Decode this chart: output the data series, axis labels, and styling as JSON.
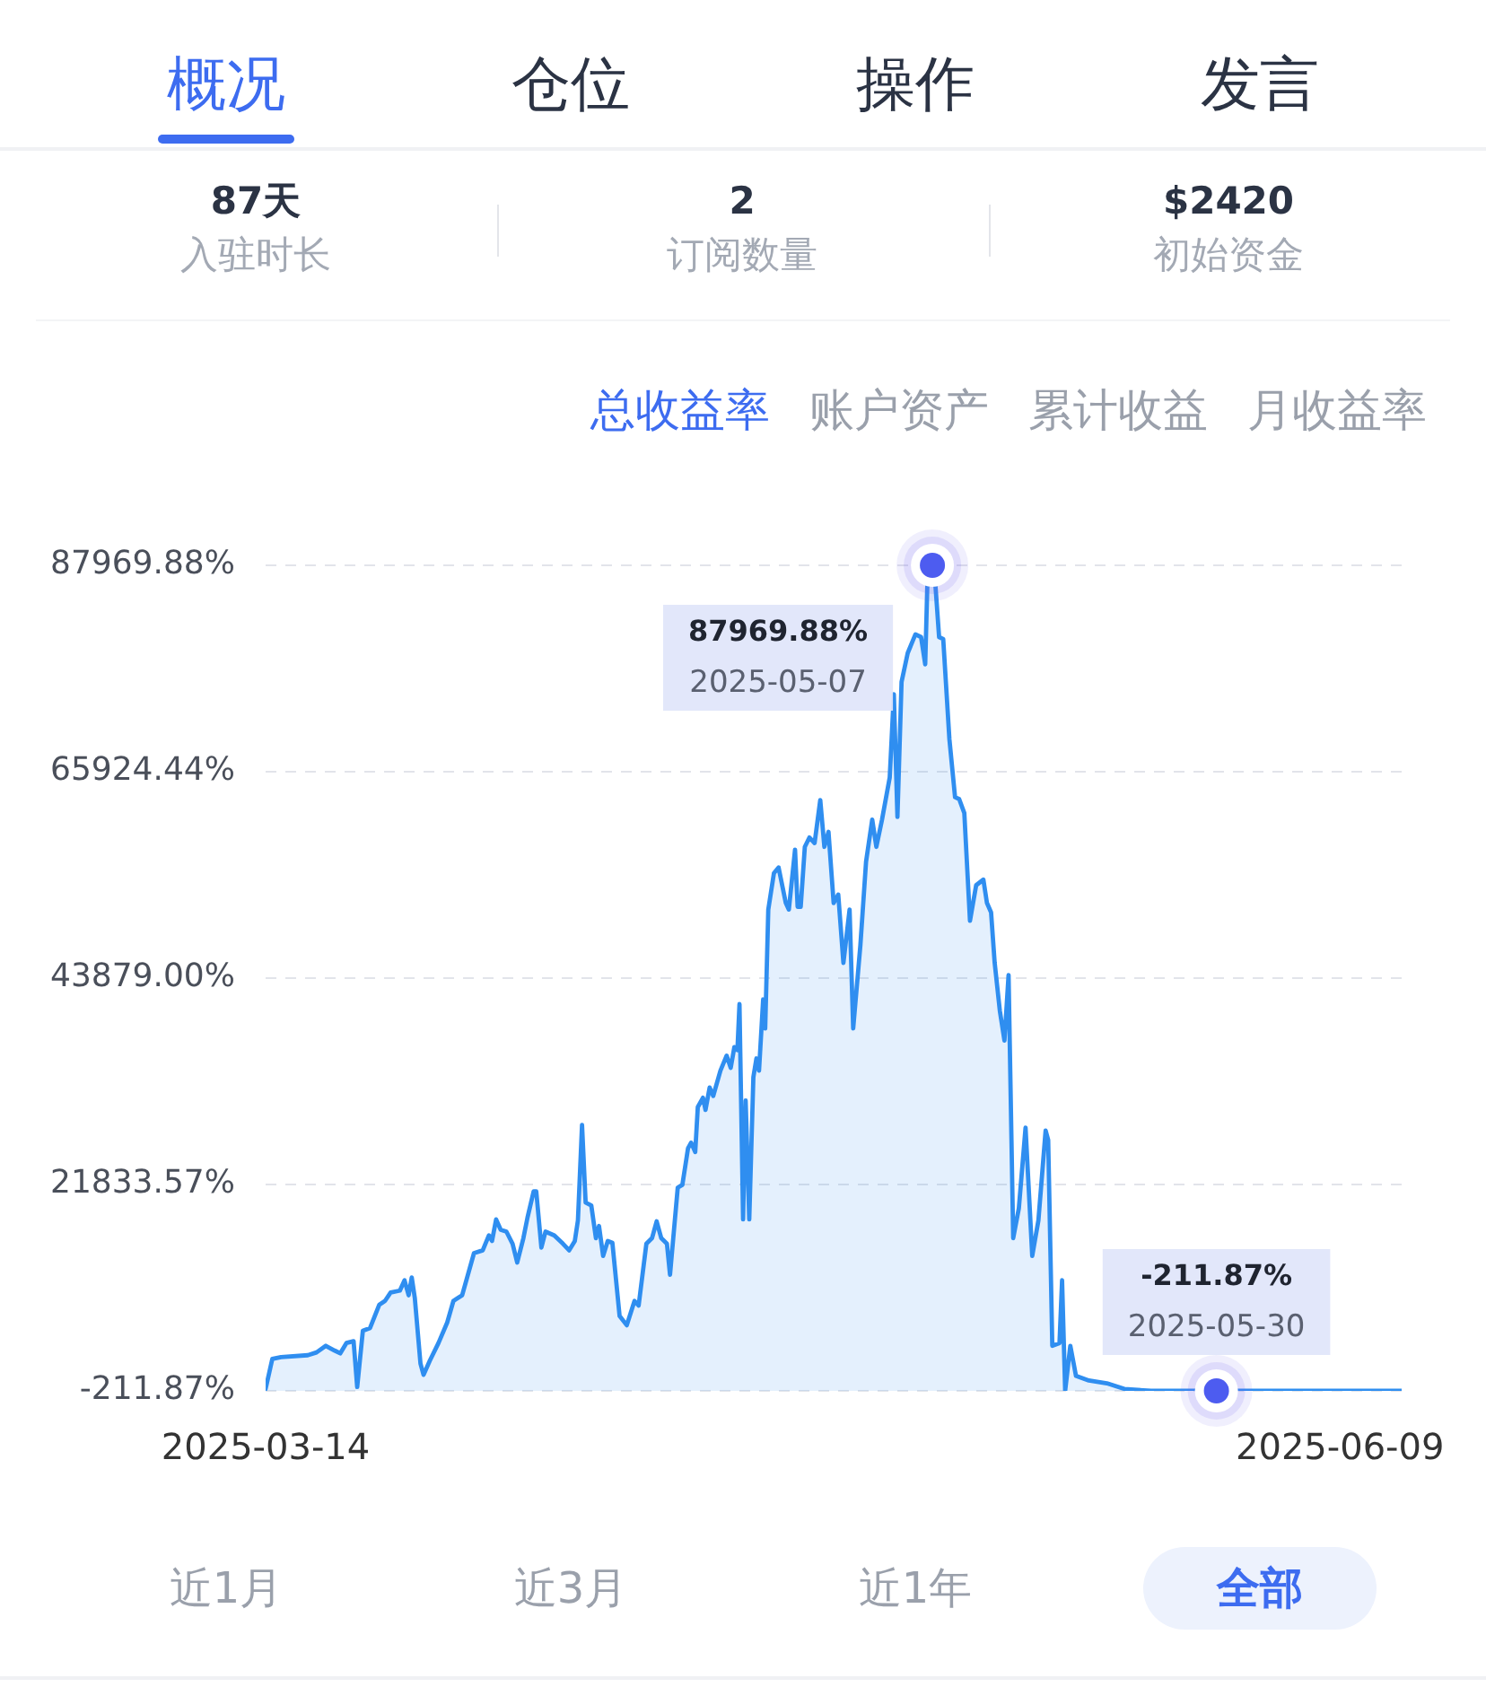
{
  "chart_data": {
    "type": "area",
    "x": [
      "2025-03-14T00:00",
      "2025-03-14T13:00",
      "2025-03-15T06:00",
      "2025-03-17T10:00",
      "2025-03-18T03:00",
      "2025-03-18T21:00",
      "2025-03-19T14:00",
      "2025-03-20T01:00",
      "2025-03-20T13:00",
      "2025-03-21T03:00",
      "2025-03-21T10:00",
      "2025-03-21T21:00",
      "2025-03-22T11:00",
      "2025-03-23T05:00",
      "2025-03-23T16:00",
      "2025-03-24T03:00",
      "2025-03-24T21:00",
      "2025-03-25T06:00",
      "2025-03-25T14:00",
      "2025-03-25T20:00",
      "2025-03-26T02:00",
      "2025-03-26T13:00",
      "2025-03-26T19:00",
      "2025-03-27T07:00",
      "2025-03-28T00:00",
      "2025-03-28T17:00",
      "2025-03-29T05:00",
      "2025-03-29T22:00",
      "2025-03-30T21:00",
      "2025-03-31T14:00",
      "2025-04-01T02:00",
      "2025-04-01T08:00",
      "2025-04-01T16:00",
      "2025-04-02T01:00",
      "2025-04-02T12:00",
      "2025-04-03T00:00",
      "2025-04-03T09:00",
      "2025-04-03T21:00",
      "2025-04-04T05:00",
      "2025-04-04T17:00",
      "2025-04-04T22:00",
      "2025-04-05T08:00",
      "2025-04-05T16:00",
      "2025-04-06T09:00",
      "2025-04-07T02:00",
      "2025-04-07T14:00",
      "2025-04-08T01:00",
      "2025-04-08T07:00",
      "2025-04-08T15:00",
      "2025-04-08T22:00",
      "2025-04-09T09:00",
      "2025-04-09T18:00",
      "2025-04-10T00:00",
      "2025-04-10T08:00",
      "2025-04-10T17:00",
      "2025-04-11T02:00",
      "2025-04-11T16:00",
      "2025-04-12T06:00",
      "2025-04-12T21:00",
      "2025-04-13T05:00",
      "2025-04-13T20:00",
      "2025-04-14T07:00",
      "2025-04-14T16:00",
      "2025-04-15T01:00",
      "2025-04-15T12:00",
      "2025-04-15T18:00",
      "2025-04-16T09:00",
      "2025-04-16T18:00",
      "2025-04-17T05:00",
      "2025-04-17T11:00",
      "2025-04-17T19:00",
      "2025-04-18T00:00",
      "2025-04-18T10:00",
      "2025-04-18T15:00",
      "2025-04-18T23:00",
      "2025-04-19T06:00",
      "2025-04-19T20:00",
      "2025-04-20T08:00",
      "2025-04-20T16:00",
      "2025-04-20T23:00",
      "2025-04-21T05:00",
      "2025-04-21T09:00",
      "2025-04-21T16:00",
      "2025-04-21T21:00",
      "2025-04-22T04:00",
      "2025-04-22T12:00",
      "2025-04-22T18:00",
      "2025-04-22T23:00",
      "2025-04-23T07:00",
      "2025-04-23T11:00",
      "2025-04-23T17:00",
      "2025-04-24T04:00",
      "2025-04-24T13:00",
      "2025-04-25T03:00",
      "2025-04-25T09:00",
      "2025-04-25T21:00",
      "2025-04-26T02:00",
      "2025-04-26T08:00",
      "2025-04-26T16:00",
      "2025-04-27T01:00",
      "2025-04-27T11:00",
      "2025-04-27T22:00",
      "2025-04-28T06:00",
      "2025-04-28T14:00",
      "2025-04-29T00:00",
      "2025-04-29T09:00",
      "2025-04-29T19:00",
      "2025-04-30T07:00",
      "2025-04-30T14:00",
      "2025-05-01T04:00",
      "2025-05-01T15:00",
      "2025-05-02T03:00",
      "2025-05-02T11:00",
      "2025-05-02T22:00",
      "2025-05-03T13:00",
      "2025-05-03T21:00",
      "2025-05-04T04:00",
      "2025-05-04T12:00",
      "2025-05-05T00:00",
      "2025-05-05T15:00",
      "2025-05-06T02:00",
      "2025-05-06T10:00",
      "2025-05-06T14:00",
      "2025-05-07T00:00",
      "2025-05-07T06:00",
      "2025-05-07T13:00",
      "2025-05-07T21:00",
      "2025-05-08T09:00",
      "2025-05-08T20:00",
      "2025-05-09T04:00",
      "2025-05-09T14:00",
      "2025-05-10T01:00",
      "2025-05-10T13:00",
      "2025-05-11T03:00",
      "2025-05-11T10:00",
      "2025-05-11T18:00",
      "2025-05-12T01:00",
      "2025-05-12T11:00",
      "2025-05-12T20:00",
      "2025-05-13T04:00",
      "2025-05-13T13:00",
      "2025-05-14T00:00",
      "2025-05-14T13:00",
      "2025-05-15T02:00",
      "2025-05-15T14:00",
      "2025-05-16T04:00",
      "2025-05-16T09:00",
      "2025-05-16T17:00",
      "2025-05-17T07:00",
      "2025-05-17T12:00",
      "2025-05-17T18:00",
      "2025-05-18T04:00",
      "2025-05-18T15:00",
      "2025-05-19T16:00",
      "2025-05-21T03:00",
      "2025-05-22T13:00",
      "2025-05-24T17:00",
      "2025-05-30T00:00",
      "2025-06-09T00:00",
      "2025-06-14T00:00"
    ],
    "series": [
      {
        "color": "#2f8ef0",
        "values": [
          0,
          3200,
          3400,
          3600,
          3900,
          4600,
          4100,
          3800,
          4900,
          5100,
          200,
          6200,
          6500,
          9000,
          9400,
          10300,
          10500,
          11600,
          10000,
          11900,
          9700,
          2700,
          1500,
          3000,
          4900,
          7100,
          9400,
          10000,
          14500,
          14800,
          16400,
          15800,
          18100,
          17000,
          16800,
          15500,
          13500,
          16100,
          18300,
          21100,
          21100,
          15100,
          16800,
          16400,
          15500,
          14800,
          15800,
          18000,
          28200,
          19900,
          19600,
          16100,
          17400,
          14200,
          15800,
          15600,
          7800,
          6800,
          9400,
          8900,
          15500,
          16100,
          17900,
          16100,
          15500,
          12200,
          21500,
          21800,
          25700,
          26300,
          25300,
          30100,
          31100,
          29800,
          32200,
          31300,
          34000,
          35600,
          34300,
          36500,
          36200,
          41100,
          18100,
          30800,
          18100,
          33300,
          35300,
          34000,
          41600,
          38500,
          51200,
          55100,
          55700,
          51900,
          51200,
          57600,
          51500,
          51500,
          57900,
          58900,
          58300,
          62900,
          57900,
          59500,
          51900,
          52800,
          45500,
          51200,
          38500,
          47400,
          56300,
          60800,
          57900,
          60800,
          65300,
          74200,
          61100,
          75500,
          78600,
          80600,
          80300,
          77400,
          85700,
          87969.88,
          85700,
          80300,
          80100,
          69400,
          63200,
          63000,
          61500,
          50000,
          53800,
          54400,
          51900,
          50900,
          45500,
          40400,
          37200,
          44200,
          16100,
          19300,
          27900,
          14200,
          18000,
          27600,
          26600,
          4600,
          4900,
          11600,
          -200,
          4600,
          1400,
          900,
          600,
          0,
          -211.87,
          -211.87,
          -211.87,
          -211.87
        ]
      }
    ],
    "xlim": [
      "2025-03-14",
      "2025-06-14"
    ],
    "xticks": [
      "2025-03-14",
      "2025-06-09"
    ],
    "ylim": [
      -211.87,
      87969.88
    ],
    "yticks": [
      {
        "value": -211.87,
        "label": "-211.87%"
      },
      {
        "value": 21833.57,
        "label": "21833.57%"
      },
      {
        "value": 43879.0,
        "label": "43879.00%"
      },
      {
        "value": 65924.44,
        "label": "65924.44%"
      },
      {
        "value": 87969.88,
        "label": "87969.88%"
      }
    ],
    "grid": "y",
    "legend": false,
    "marker": "none",
    "annotations": [
      "概况",
      "仓位",
      "操作",
      "发言",
      "87天",
      "入驻时长",
      "2",
      "订阅数量",
      "$2420",
      "初始资金",
      "总收益率",
      "账户资产",
      "累计收益",
      "月收益率",
      {
        "text": "87969.88%\n2025-05-07",
        "x": "2025-05-07",
        "y": 87969.88
      },
      {
        "text": "-211.87%\n2025-05-30",
        "x": "2025-05-30",
        "y": -211.87
      },
      "近1月",
      "近3月",
      "近1年",
      "全部"
    ]
  }
}
